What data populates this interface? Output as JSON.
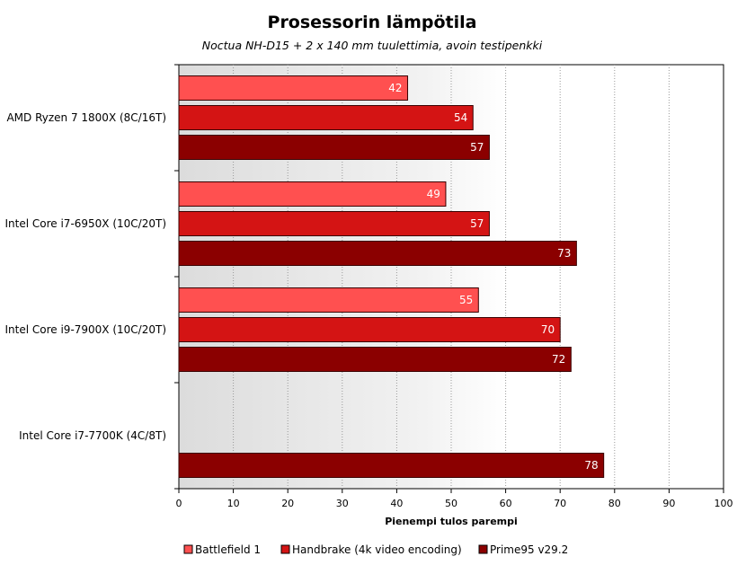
{
  "chart_data": {
    "type": "bar",
    "orientation": "horizontal",
    "title": "Prosessorin lämpötila",
    "subtitle": "Noctua  NH-D15 + 2 x 140 mm tuulettimia, avoin testipenkki",
    "xlabel": "Pienempi tulos parempi",
    "xlim": [
      0,
      100
    ],
    "xticks": [
      0,
      10,
      20,
      30,
      40,
      50,
      60,
      70,
      80,
      90,
      100
    ],
    "grid": true,
    "legend_position": "bottom",
    "categories": [
      "AMD Ryzen 7 1800X (8C/16T)",
      "Intel Core i7-6950X (10C/20T)",
      "Intel Core i9-7900X (10C/20T)",
      "Intel Core i7-7700K (4C/8T)"
    ],
    "series": [
      {
        "name": "Battlefield 1",
        "color": "#ff5050",
        "values": [
          42,
          49,
          55,
          null
        ]
      },
      {
        "name": "Handbrake (4k video encoding)",
        "color": "#d41414",
        "values": [
          54,
          57,
          70,
          null
        ]
      },
      {
        "name": "Prime95 v29.2",
        "color": "#8b0000",
        "values": [
          57,
          73,
          72,
          78
        ]
      }
    ]
  }
}
